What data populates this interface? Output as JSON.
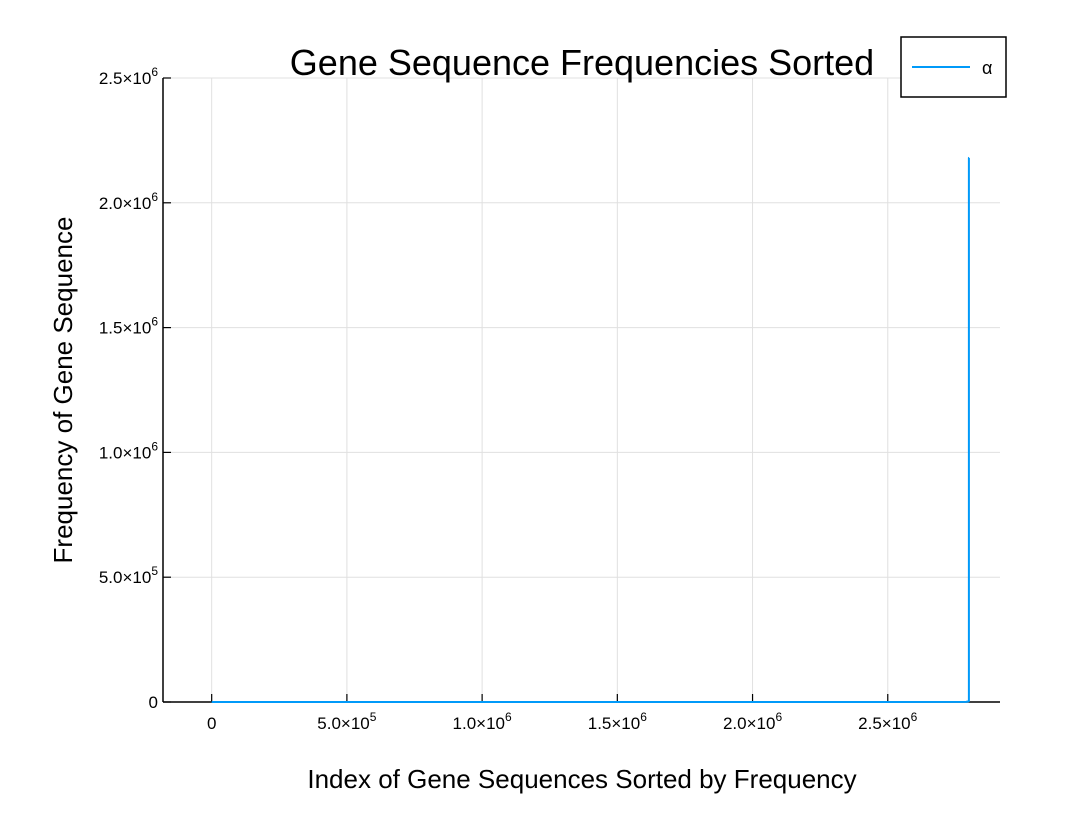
{
  "chart_data": {
    "type": "line",
    "title": "Gene Sequence Frequencies Sorted",
    "xlabel": "Index of Gene Sequences Sorted by Frequency",
    "ylabel": "Frequency of Gene Sequence",
    "xlim": [
      -180000,
      2915000
    ],
    "ylim": [
      0,
      2500000
    ],
    "x_ticks": [
      {
        "value": 0,
        "mantissa": "0",
        "exp": ""
      },
      {
        "value": 500000,
        "mantissa": "5.0×10",
        "exp": "5"
      },
      {
        "value": 1000000,
        "mantissa": "1.0×10",
        "exp": "6"
      },
      {
        "value": 1500000,
        "mantissa": "1.5×10",
        "exp": "6"
      },
      {
        "value": 2000000,
        "mantissa": "2.0×10",
        "exp": "6"
      },
      {
        "value": 2500000,
        "mantissa": "2.5×10",
        "exp": "6"
      }
    ],
    "y_ticks": [
      {
        "value": 0,
        "mantissa": "0",
        "exp": ""
      },
      {
        "value": 500000,
        "mantissa": "5.0×10",
        "exp": "5"
      },
      {
        "value": 1000000,
        "mantissa": "1.0×10",
        "exp": "6"
      },
      {
        "value": 1500000,
        "mantissa": "1.5×10",
        "exp": "6"
      },
      {
        "value": 2000000,
        "mantissa": "2.0×10",
        "exp": "6"
      },
      {
        "value": 2500000,
        "mantissa": "2.5×10",
        "exp": "6"
      }
    ],
    "grid": true,
    "legend_position": "top-right",
    "series": [
      {
        "name": "α",
        "color": "#009af9",
        "x": [
          0,
          500000,
          1000000,
          1500000,
          2000000,
          2500000,
          2790000,
          2800000,
          2800000,
          2800500
        ],
        "y": [
          1,
          2,
          4,
          8,
          20,
          60,
          500,
          3000,
          2180000,
          2180000
        ]
      }
    ]
  }
}
